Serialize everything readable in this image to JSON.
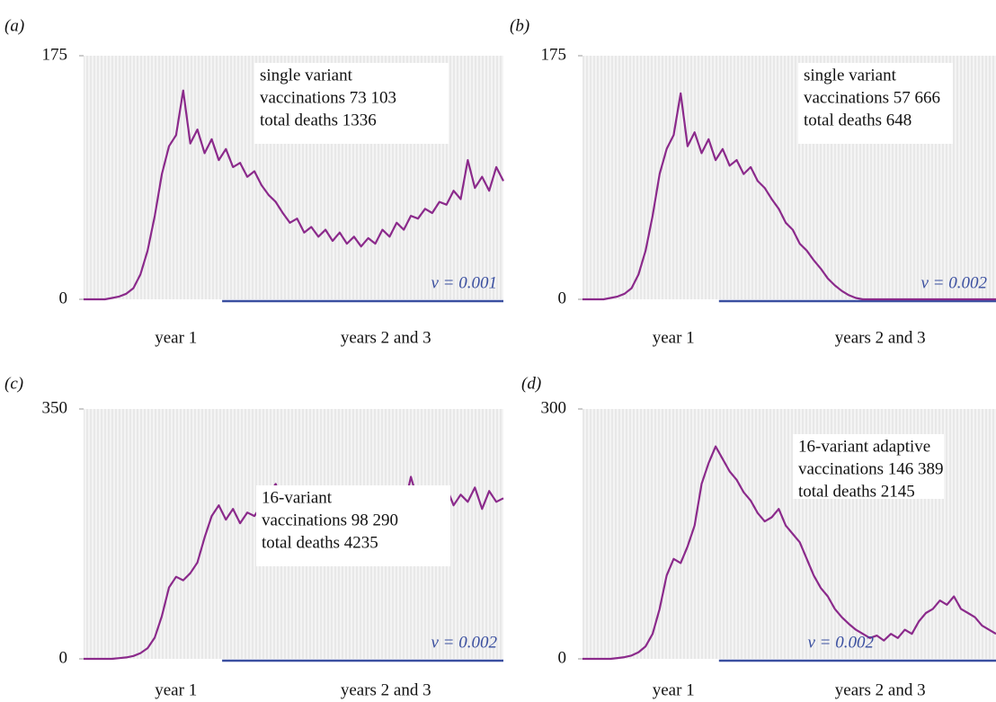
{
  "chart_data": [
    {
      "type": "line",
      "panel": "(a)",
      "annotation": [
        "single variant",
        "vaccinations 73 103",
        "total deaths 1336"
      ],
      "note": "v = 0.001",
      "x_labels": [
        "year 1",
        "years 2 and 3"
      ],
      "ylim": [
        0,
        175
      ],
      "yticks": [
        0,
        175
      ],
      "color": "#8b2a8b",
      "grid": true,
      "values": [
        0,
        0,
        0,
        0,
        1,
        2,
        4,
        8,
        18,
        35,
        60,
        90,
        110,
        118,
        150,
        112,
        122,
        105,
        115,
        100,
        108,
        95,
        98,
        88,
        92,
        82,
        75,
        70,
        62,
        55,
        58,
        48,
        52,
        45,
        50,
        42,
        48,
        40,
        45,
        38,
        44,
        40,
        50,
        45,
        55,
        50,
        60,
        58,
        65,
        62,
        70,
        68,
        78,
        72,
        100,
        80,
        88,
        78,
        95,
        85
      ]
    },
    {
      "type": "line",
      "panel": "(b)",
      "annotation": [
        "single variant",
        "vaccinations 57 666",
        "total deaths 648"
      ],
      "note": "v = 0.002",
      "x_labels": [
        "year 1",
        "years 2 and 3"
      ],
      "ylim": [
        0,
        175
      ],
      "yticks": [
        0,
        175
      ],
      "color": "#8b2a8b",
      "grid": true,
      "values": [
        0,
        0,
        0,
        0,
        1,
        2,
        4,
        8,
        18,
        35,
        60,
        90,
        108,
        118,
        148,
        110,
        120,
        105,
        115,
        100,
        108,
        96,
        100,
        90,
        95,
        85,
        80,
        72,
        65,
        55,
        50,
        40,
        35,
        28,
        22,
        15,
        10,
        6,
        3,
        1,
        0,
        0,
        0,
        0,
        0,
        0,
        0,
        0,
        0,
        0,
        0,
        0,
        0,
        0,
        0,
        0,
        0,
        0,
        0,
        0
      ]
    },
    {
      "type": "line",
      "panel": "(c)",
      "annotation": [
        "16-variant",
        "vaccinations 98 290",
        "total deaths 4235"
      ],
      "note": "v = 0.002",
      "x_labels": [
        "year 1",
        "years 2 and 3"
      ],
      "ylim": [
        0,
        350
      ],
      "yticks": [
        0,
        350
      ],
      "color": "#8b2a8b",
      "grid": true,
      "values": [
        0,
        0,
        0,
        0,
        0,
        1,
        2,
        4,
        8,
        15,
        30,
        60,
        100,
        115,
        110,
        120,
        135,
        170,
        200,
        215,
        195,
        210,
        190,
        205,
        200,
        215,
        230,
        245,
        215,
        230,
        210,
        225,
        205,
        195,
        210,
        190,
        200,
        185,
        205,
        195,
        210,
        200,
        220,
        215,
        230,
        210,
        255,
        220,
        235,
        210,
        225,
        240,
        215,
        230,
        220,
        240,
        210,
        235,
        220,
        225
      ]
    },
    {
      "type": "line",
      "panel": "(d)",
      "annotation": [
        "16-variant adaptive",
        "vaccinations 146 389",
        "total deaths 2145"
      ],
      "note": "v = 0.002",
      "x_labels": [
        "year 1",
        "years 2 and 3"
      ],
      "ylim": [
        0,
        300
      ],
      "yticks": [
        0,
        300
      ],
      "color": "#8b2a8b",
      "grid": true,
      "values": [
        0,
        0,
        0,
        0,
        0,
        1,
        2,
        4,
        8,
        15,
        30,
        60,
        100,
        120,
        115,
        135,
        160,
        210,
        235,
        255,
        240,
        225,
        215,
        200,
        190,
        175,
        165,
        170,
        180,
        160,
        150,
        140,
        120,
        100,
        85,
        75,
        60,
        50,
        42,
        35,
        30,
        25,
        28,
        22,
        30,
        25,
        35,
        30,
        45,
        55,
        60,
        70,
        65,
        75,
        60,
        55,
        50,
        40,
        35,
        30
      ]
    }
  ]
}
